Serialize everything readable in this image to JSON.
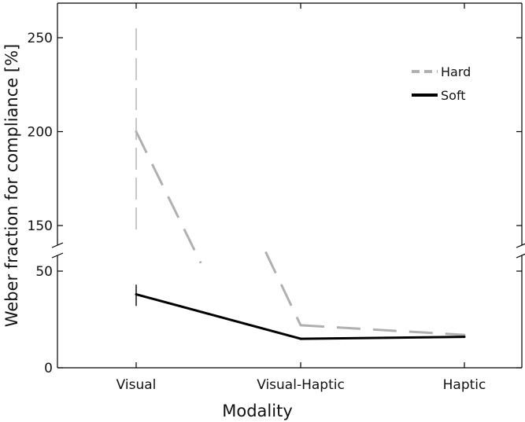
{
  "chart_data": {
    "type": "line",
    "categories": [
      "Visual",
      "Visual-Haptic",
      "Haptic"
    ],
    "xlabel": "Modality",
    "ylabel": "Weber fraction for compliance [%]",
    "y_axis_break": true,
    "ylim_lower": [
      0,
      60
    ],
    "ylim_upper": [
      130,
      265
    ],
    "yticks_lower": [
      0,
      50
    ],
    "yticks_upper": [
      150,
      200,
      250
    ],
    "legend_position": "top-right",
    "grid": false,
    "series": [
      {
        "name": "Hard",
        "style": "dashed",
        "color": "#b0b0b0",
        "values": [
          200,
          22,
          17
        ],
        "error_bar_high": [
          255,
          null,
          null
        ],
        "error_bar_low": [
          145,
          null,
          null
        ]
      },
      {
        "name": "Soft",
        "style": "solid",
        "color": "#000000",
        "values": [
          38,
          15,
          16
        ],
        "error_bar_high": [
          43,
          null,
          null
        ],
        "error_bar_low": [
          32,
          null,
          null
        ]
      }
    ]
  }
}
